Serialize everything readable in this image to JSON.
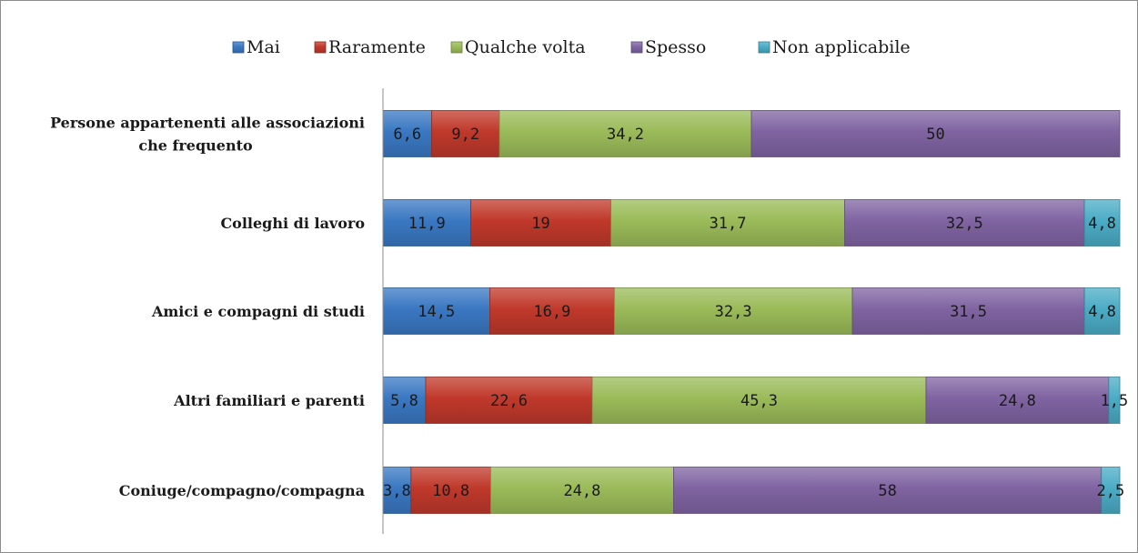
{
  "chart_data": {
    "type": "bar",
    "orientation": "horizontal",
    "stacked": "percent",
    "legend_position": "top",
    "grid": false,
    "categories": [
      [
        "Persone appartenenti alle associazioni",
        "che frequento"
      ],
      [
        "Colleghi di lavoro"
      ],
      [
        "Amici e compagni di studi"
      ],
      [
        "Altri familiari e parenti"
      ],
      [
        "Coniuge/compagno/compagna"
      ]
    ],
    "series": [
      {
        "name": "Mai",
        "color": "#3a78c2",
        "values": [
          6.6,
          11.9,
          14.5,
          5.8,
          3.8
        ],
        "labels": [
          "6,6",
          "11,9",
          "14,5",
          "5,8",
          "3,8"
        ]
      },
      {
        "name": "Raramente",
        "color": "#c0392b",
        "values": [
          9.2,
          19,
          16.9,
          22.6,
          10.8
        ],
        "labels": [
          "9,2",
          "19",
          "16,9",
          "22,6",
          "10,8"
        ]
      },
      {
        "name": "Qualche volta",
        "color": "#9bbb59",
        "values": [
          34.2,
          31.7,
          32.3,
          45.3,
          24.8
        ],
        "labels": [
          "34,2",
          "31,7",
          "32,3",
          "45,3",
          "24,8"
        ]
      },
      {
        "name": "Spesso",
        "color": "#8064a2",
        "values": [
          50,
          32.5,
          31.5,
          24.8,
          58
        ],
        "labels": [
          "50",
          "32,5",
          "31,5",
          "24,8",
          "58"
        ]
      },
      {
        "name": "Non applicabile",
        "color": "#4bacc6",
        "values": [
          0,
          4.8,
          4.8,
          1.5,
          2.5
        ],
        "labels": [
          "",
          "4,8",
          "4,8",
          "1,5",
          "2,5"
        ]
      }
    ]
  }
}
